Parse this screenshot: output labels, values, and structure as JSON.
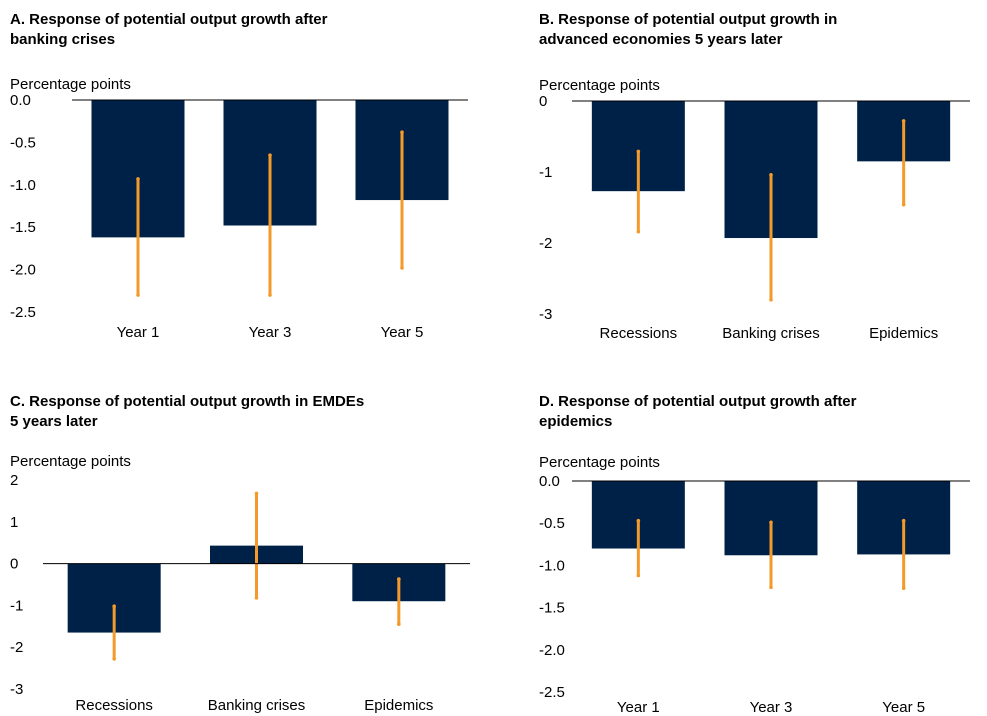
{
  "colors": {
    "bar": "#002147",
    "error": "#F39A2B",
    "axis": "#000000"
  },
  "charts": [
    {
      "id": "A",
      "title": "A. Response of potential output growth after banking crises",
      "title_lines": [
        "A. Response of potential output growth after",
        "banking crises"
      ],
      "unit": "Percentage points",
      "chart_data": {
        "type": "bar",
        "categories": [
          "Year 1",
          "Year 3",
          "Year 5"
        ],
        "values": [
          -1.62,
          -1.48,
          -1.18
        ],
        "error_low": [
          -2.3,
          -2.3,
          -1.98
        ],
        "error_high": [
          -0.93,
          -0.65,
          -0.38
        ],
        "ylim": [
          -2.5,
          0.0
        ],
        "yticks": [
          0.0,
          -0.5,
          -1.0,
          -1.5,
          -2.0,
          -2.5
        ],
        "ytick_labels": [
          "0.0",
          "-0.5",
          "-1.0",
          "-1.5",
          "-2.0",
          "-2.5"
        ],
        "xlabel": "",
        "ylabel": "Percentage points"
      }
    },
    {
      "id": "B",
      "title": "B. Response of potential output growth in advanced economies 5 years later",
      "title_lines": [
        "B. Response of potential output growth in",
        "advanced economies 5 years later"
      ],
      "unit": "Percentage points",
      "chart_data": {
        "type": "bar",
        "categories": [
          "Recessions",
          "Banking crises",
          "Epidemics"
        ],
        "values": [
          -1.27,
          -1.93,
          -0.85
        ],
        "error_low": [
          -1.84,
          -2.8,
          -1.46
        ],
        "error_high": [
          -0.71,
          -1.04,
          -0.28
        ],
        "ylim": [
          -3,
          0
        ],
        "yticks": [
          0,
          -1,
          -2,
          -3
        ],
        "ytick_labels": [
          "0",
          "-1",
          "-2",
          "-3"
        ],
        "xlabel": "",
        "ylabel": "Percentage points"
      }
    },
    {
      "id": "C",
      "title": "C. Response of potential output growth in EMDEs 5 years later",
      "title_lines": [
        "C. Response of potential output growth in EMDEs",
        "5 years later"
      ],
      "unit": "Percentage points",
      "chart_data": {
        "type": "bar",
        "categories": [
          "Recessions",
          "Banking crises",
          "Epidemics"
        ],
        "values": [
          -1.65,
          0.43,
          -0.9
        ],
        "error_low": [
          -2.28,
          -0.82,
          -1.45
        ],
        "error_high": [
          -1.02,
          1.68,
          -0.37
        ],
        "ylim": [
          -3,
          2
        ],
        "yticks": [
          2,
          1,
          0,
          -1,
          -2,
          -3
        ],
        "ytick_labels": [
          "2",
          "1",
          "0",
          "-1",
          "-2",
          "-3"
        ],
        "xlabel": "",
        "ylabel": "Percentage points"
      }
    },
    {
      "id": "D",
      "title": "D. Response of potential output growth after epidemics",
      "title_lines": [
        "D. Response of potential output growth after",
        "epidemics"
      ],
      "unit": "Percentage points",
      "chart_data": {
        "type": "bar",
        "categories": [
          "Year 1",
          "Year 3",
          "Year 5"
        ],
        "values": [
          -0.8,
          -0.88,
          -0.87
        ],
        "error_low": [
          -1.12,
          -1.26,
          -1.27
        ],
        "error_high": [
          -0.47,
          -0.49,
          -0.47
        ],
        "ylim": [
          -2.5,
          0.0
        ],
        "yticks": [
          0.0,
          -0.5,
          -1.0,
          -1.5,
          -2.0,
          -2.5
        ],
        "ytick_labels": [
          "0.0",
          "-0.5",
          "-1.0",
          "-1.5",
          "-2.0",
          "-2.5"
        ],
        "xlabel": "",
        "ylabel": "Percentage points"
      }
    }
  ]
}
